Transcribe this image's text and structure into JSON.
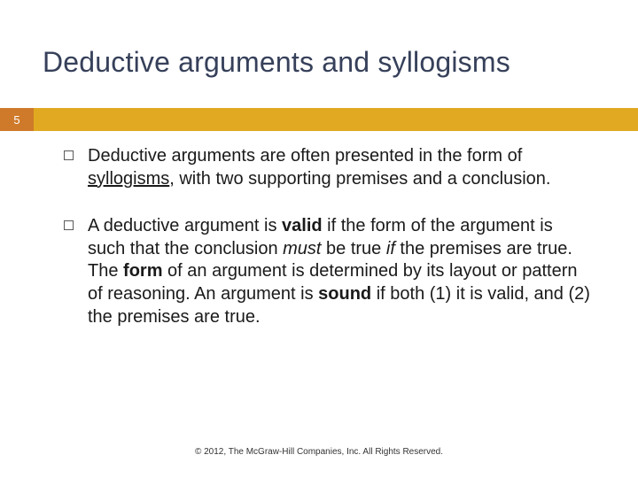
{
  "title": "Deductive arguments and syllogisms",
  "accent_bar_color": "#e0a921",
  "page_tab_color": "#cf7a2a",
  "title_color": "#36405a",
  "page_number": "5",
  "bullets": [
    {
      "pre1": "Deductive arguments are often presented in the form of ",
      "u1": "syllogisms",
      "post1": ", with two supporting premises and a conclusion."
    },
    {
      "t1": "A deductive argument is ",
      "b1": "valid",
      "t2": " if the form of the argument is such that the conclusion ",
      "i1": "must",
      "t3": " be true ",
      "i2": "if",
      "t4": " the premises are true. The ",
      "b2": "form",
      "t5": " of an argument is determined by its layout or pattern of reasoning. An argument is ",
      "b3": "sound",
      "t6": " if both (1) it is valid, and (2) the premises are true."
    }
  ],
  "footer": "© 2012, The McGraw-Hill Companies, Inc.  All Rights Reserved."
}
